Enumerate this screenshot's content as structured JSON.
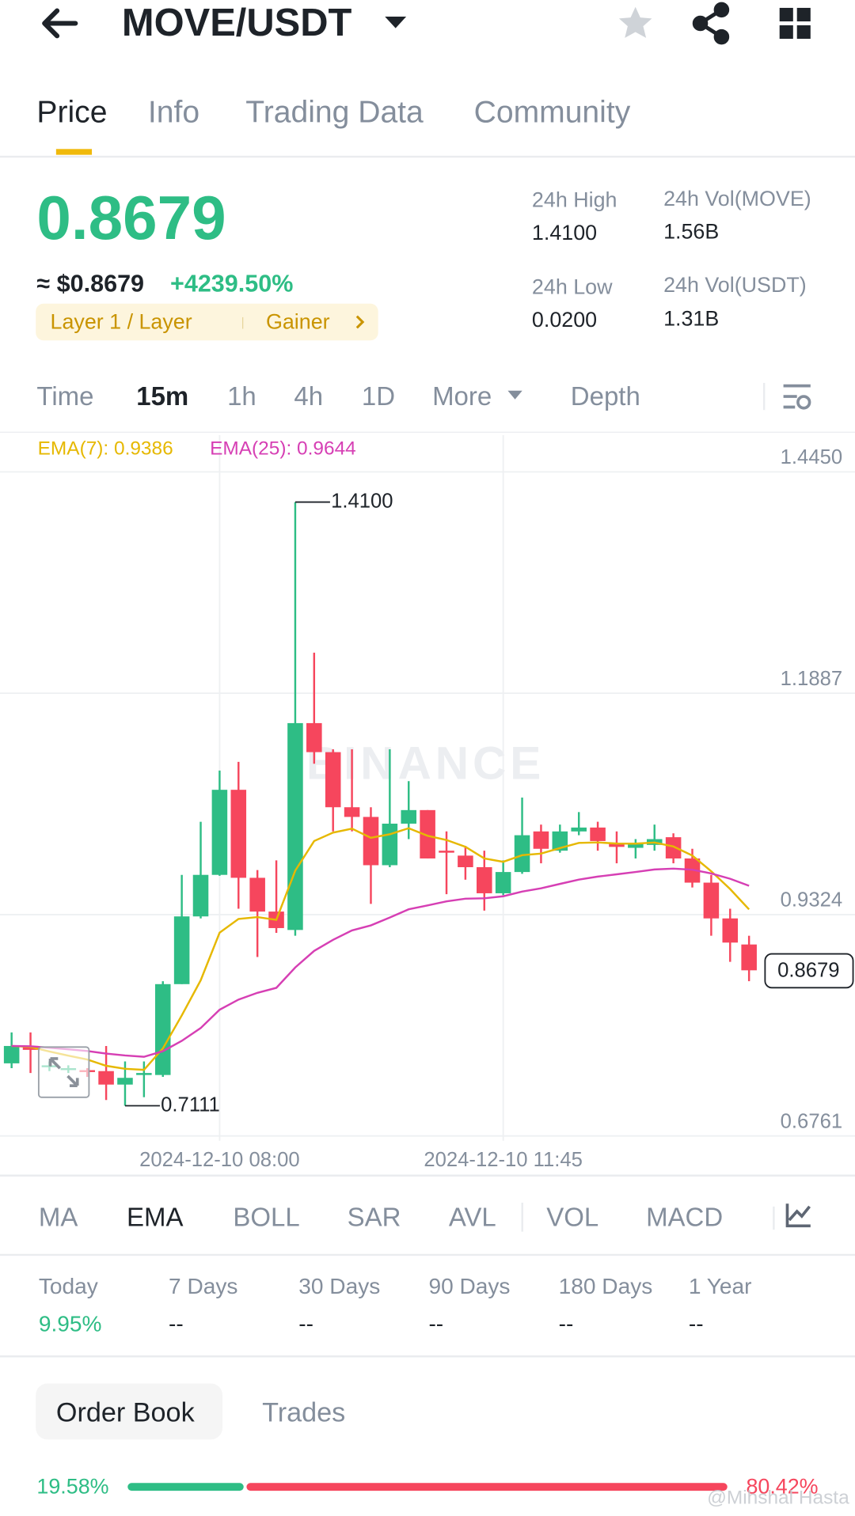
{
  "header": {
    "title": "MOVE/USDT"
  },
  "tabs": [
    "Price",
    "Info",
    "Trading Data",
    "Community"
  ],
  "ticker": {
    "price": "0.8679",
    "usd": "≈ $0.8679",
    "change": "+4239.50%",
    "tags": [
      "Layer 1 / Layer",
      "Gainer"
    ],
    "stats": [
      {
        "label": "24h High",
        "value": "1.4100"
      },
      {
        "label": "24h Vol(MOVE)",
        "value": "1.56B"
      },
      {
        "label": "24h Low",
        "value": "0.0200"
      },
      {
        "label": "24h Vol(USDT)",
        "value": "1.31B"
      }
    ]
  },
  "intervals": [
    "Time",
    "15m",
    "1h",
    "4h",
    "1D",
    "More",
    "Depth"
  ],
  "chart_data": {
    "type": "candlestick",
    "watermark": "BINANCE",
    "ema": [
      {
        "label": "EMA(7): 0.9386",
        "period": 7,
        "color": "#e6b800"
      },
      {
        "label": "EMA(25): 0.9644",
        "period": 25,
        "color": "#d63fb4"
      }
    ],
    "ylim": [
      0.6761,
      1.445
    ],
    "yticks": [
      {
        "value": 1.445,
        "label": "1.4450"
      },
      1.1887,
      0.9324,
      0.6761
    ],
    "xticks": [
      {
        "value": 11,
        "label": "2024-12-10 08:00"
      },
      {
        "value": 26,
        "label": "2024-12-10 11:45"
      }
    ],
    "up_color": "#2ebd85",
    "down_color": "#f6465d",
    "candles": {
      "open": [
        0.7602,
        0.7803,
        0.7557,
        0.7535,
        0.7523,
        0.7512,
        0.7356,
        0.7467,
        0.7467,
        0.8519,
        0.9303,
        0.9784,
        1.0769,
        0.975,
        0.9359,
        0.9146,
        1.1541,
        1.1205,
        1.0567,
        1.0455,
        0.9896,
        1.0377,
        1.0534,
        1.0064,
        1.0007,
        0.9873,
        0.9571,
        0.9817,
        1.0287,
        1.0064,
        1.0287,
        1.0332,
        1.0153,
        1.0097,
        1.0131,
        1.022,
        0.9974,
        0.9694,
        0.928,
        0.8978
      ],
      "high": [
        0.796,
        0.796,
        0.7624,
        0.7579,
        0.7546,
        0.7803,
        0.7624,
        0.7624,
        0.8553,
        0.9784,
        1.0399,
        1.0992,
        1.1093,
        0.984,
        0.9952,
        1.41,
        1.2357,
        1.1238,
        1.1238,
        1.0567,
        1.1238,
        1.0869,
        1.0534,
        1.0287,
        1.0119,
        1.0064,
        0.9952,
        1.0679,
        1.0366,
        1.0366,
        1.0511,
        1.0399,
        1.0287,
        1.0198,
        1.0366,
        1.0265,
        1.0086,
        0.9784,
        0.9392,
        0.9079
      ],
      "low": [
        0.7546,
        0.749,
        0.7512,
        0.749,
        0.7445,
        0.7177,
        0.7111,
        0.721,
        0.7445,
        0.8519,
        0.928,
        0.9773,
        0.9392,
        0.8833,
        0.9112,
        0.9079,
        1.1071,
        1.0287,
        1.0287,
        0.9448,
        0.9873,
        1.0198,
        0.9974,
        0.956,
        0.9728,
        0.937,
        0.9549,
        0.9796,
        0.9918,
        1.0041,
        1.0243,
        1.0064,
        0.9918,
        0.9974,
        1.0064,
        0.9918,
        0.9638,
        0.9079,
        0.8777,
        0.8553
      ],
      "close": [
        0.7803,
        0.7758,
        0.7579,
        0.7546,
        0.7512,
        0.7356,
        0.7434,
        0.749,
        0.8519,
        0.9303,
        0.9784,
        1.0769,
        0.975,
        0.9359,
        0.9168,
        1.1541,
        1.1205,
        1.0567,
        1.0455,
        0.9896,
        1.0377,
        1.0534,
        0.9974,
        1.0041,
        0.9873,
        0.9571,
        0.9817,
        1.0243,
        1.0086,
        1.0287,
        1.0332,
        1.0176,
        1.0108,
        1.0142,
        1.0198,
        0.9974,
        0.9694,
        0.928,
        0.9,
        0.8679
      ]
    },
    "annotations": [
      {
        "value": 1.41,
        "label": "1.4100",
        "candle": 15
      },
      {
        "value": 0.7111,
        "label": "0.7111",
        "candle": 6
      }
    ],
    "last_price": {
      "value": 0.8679,
      "label": "0.8679"
    }
  },
  "indicators": [
    "MA",
    "EMA",
    "BOLL",
    "SAR",
    "AVL",
    "VOL",
    "MACD"
  ],
  "performance": [
    {
      "label": "Today",
      "value": "9.95%"
    },
    {
      "label": "7 Days",
      "value": "--"
    },
    {
      "label": "30 Days",
      "value": "--"
    },
    {
      "label": "90 Days",
      "value": "--"
    },
    {
      "label": "180 Days",
      "value": "--"
    },
    {
      "label": "1 Year",
      "value": "--"
    }
  ],
  "orderbook": {
    "tabs": [
      "Order Book",
      "Trades"
    ],
    "ratio": {
      "values": [
        19.58,
        80.42
      ],
      "value_labels": [
        "19.58%",
        "80.42%"
      ]
    }
  },
  "credit": "@Mihshal Hasta"
}
